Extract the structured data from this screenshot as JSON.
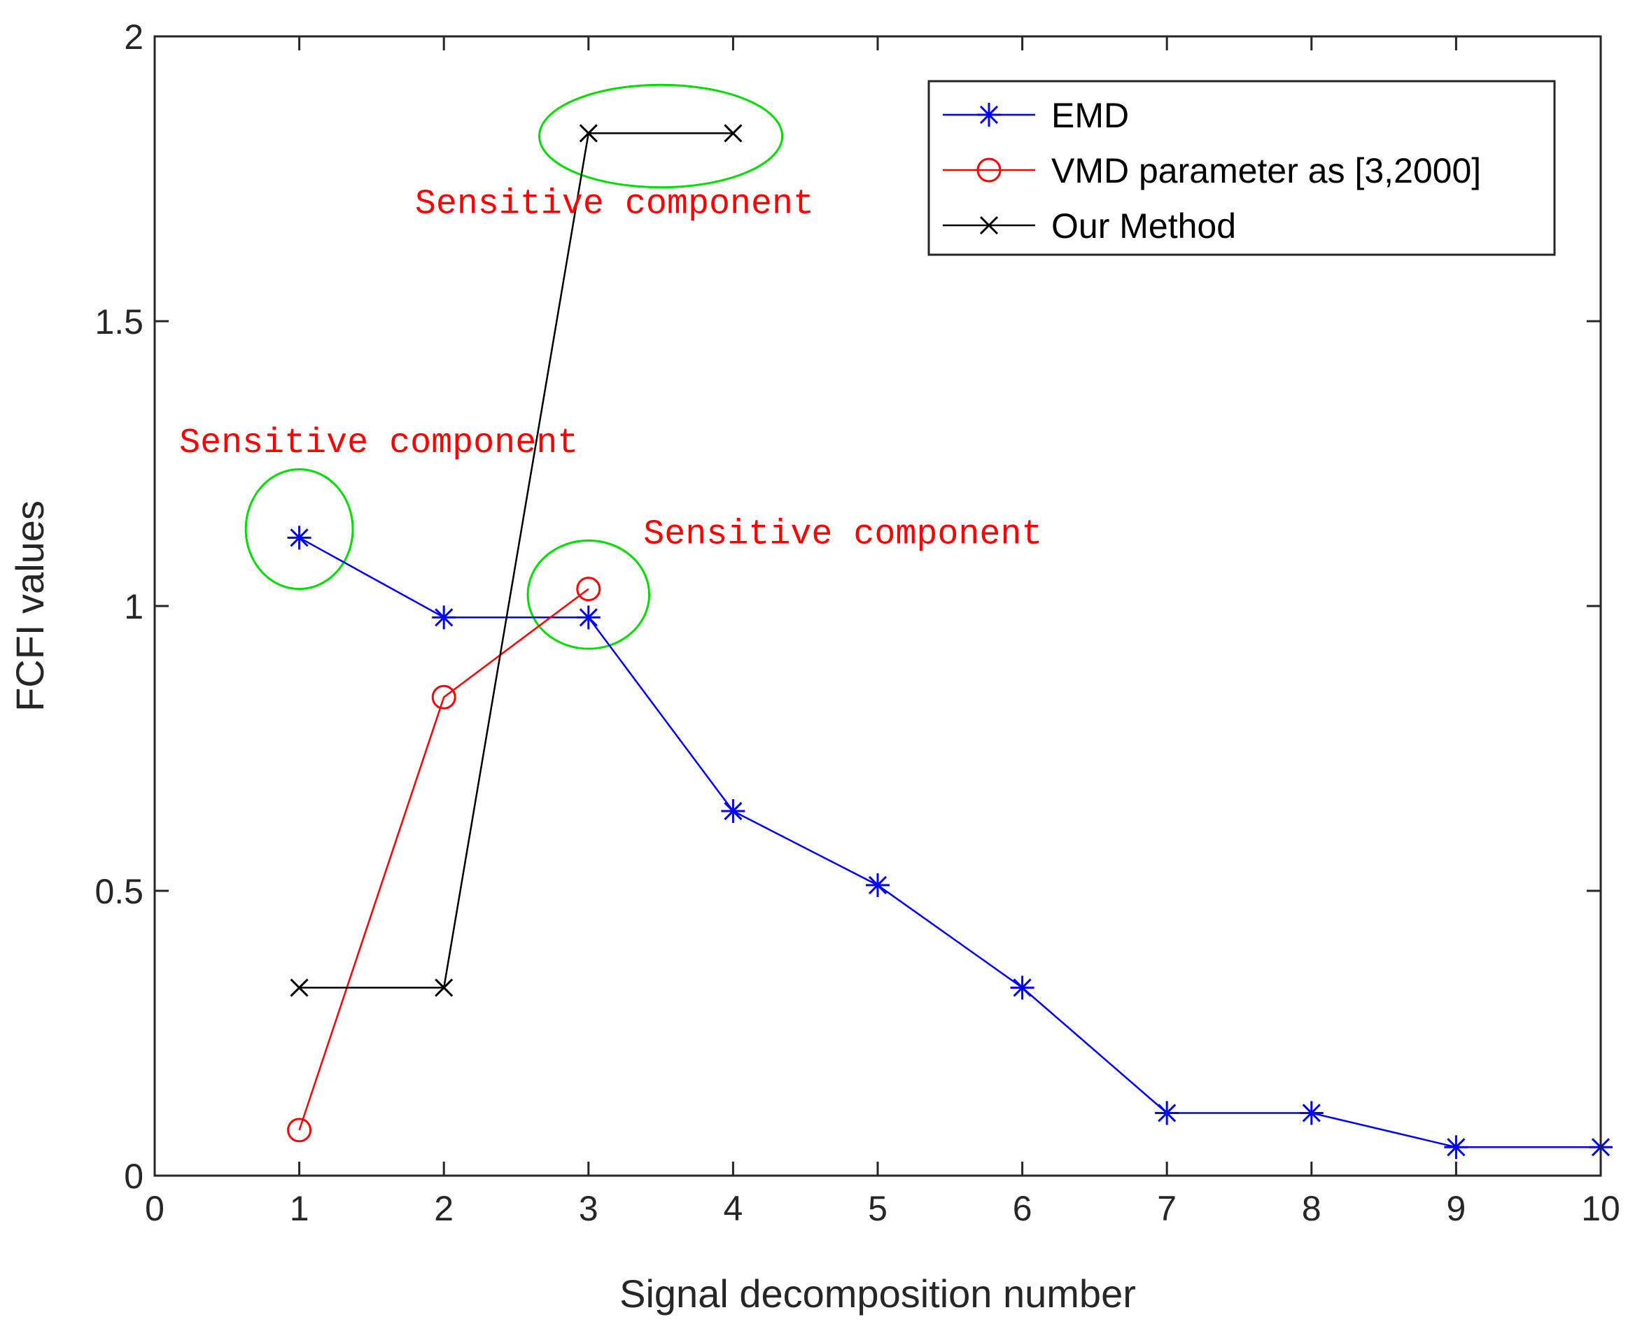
{
  "chart_data": {
    "type": "line",
    "title": "",
    "xlabel": "Signal decomposition number",
    "ylabel": "FCFI values",
    "xlim": [
      0,
      10
    ],
    "ylim": [
      0,
      2
    ],
    "xticks": [
      0,
      1,
      2,
      3,
      4,
      5,
      6,
      7,
      8,
      9,
      10
    ],
    "yticks": [
      0,
      0.5,
      1,
      1.5,
      2
    ],
    "xtick_labels": [
      "0",
      "1",
      "2",
      "3",
      "4",
      "5",
      "6",
      "7",
      "8",
      "9",
      "10"
    ],
    "ytick_labels": [
      "0",
      "0.5",
      "1",
      "1.5",
      "2"
    ],
    "grid": false,
    "legend_position": "top-right",
    "series": [
      {
        "name": "EMD",
        "color": "#0000ff",
        "marker": "asterisk",
        "x": [
          1,
          2,
          3,
          4,
          5,
          6,
          7,
          8,
          9,
          10
        ],
        "y": [
          1.12,
          0.98,
          0.98,
          0.64,
          0.51,
          0.33,
          0.11,
          0.11,
          0.05,
          0.05
        ]
      },
      {
        "name": "VMD parameter as [3,2000]",
        "color": "#ff0000",
        "marker": "circle",
        "x": [
          1,
          2,
          3
        ],
        "y": [
          0.08,
          0.84,
          1.03
        ]
      },
      {
        "name": "Our Method",
        "color": "#000000",
        "marker": "x",
        "x": [
          1,
          2,
          3,
          4
        ],
        "y": [
          0.33,
          0.33,
          1.83,
          1.83
        ]
      }
    ],
    "annotations": [
      {
        "text": "Sensitive component",
        "x": 0.17,
        "y": 1.27,
        "color": "#ff0000"
      },
      {
        "text": "Sensitive component",
        "x": 1.8,
        "y": 1.69,
        "color": "#ff0000"
      },
      {
        "text": "Sensitive component",
        "x": 3.38,
        "y": 1.11,
        "color": "#ff0000"
      }
    ],
    "highlight_ellipses": [
      {
        "cx": 1.0,
        "cy": 1.135,
        "rx": 0.37,
        "ry": 0.105,
        "color": "#00dd00"
      },
      {
        "cx": 3.5,
        "cy": 1.825,
        "rx": 0.84,
        "ry": 0.09,
        "color": "#00dd00"
      },
      {
        "cx": 3.0,
        "cy": 1.02,
        "rx": 0.42,
        "ry": 0.095,
        "color": "#00dd00"
      }
    ]
  }
}
